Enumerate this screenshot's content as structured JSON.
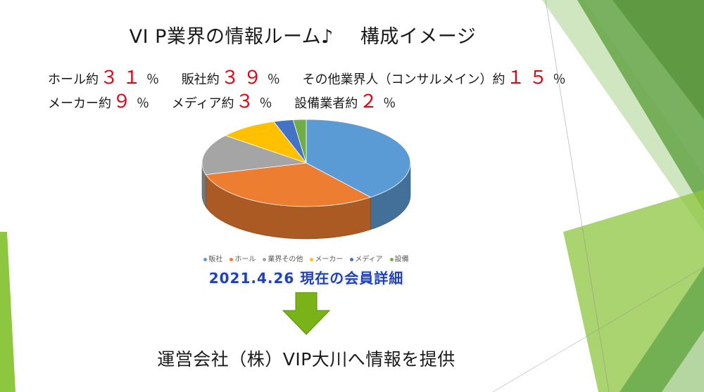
{
  "slide": {
    "title_part1": "VI P業界の情報ルーム♪",
    "title_part2": "構成イメージ",
    "stats": {
      "line1": [
        {
          "label": "ホール約",
          "num": "３１",
          "unit": "％"
        },
        {
          "label": "販社約",
          "num": "３９",
          "unit": "％"
        },
        {
          "label": "その他業界人（コンサルメイン）約",
          "num": "１５",
          "unit": "％"
        }
      ],
      "line2": [
        {
          "label": "メーカー約",
          "num": "９",
          "unit": "％"
        },
        {
          "label": "メディア約",
          "num": "３",
          "unit": "％"
        },
        {
          "label": "設備業者約",
          "num": "２",
          "unit": "％"
        }
      ]
    },
    "caption": "2021.4.26 現在の会員詳細",
    "bottom_text": "運営会社（株）VIP大川へ情報を提供"
  },
  "colors": {
    "accent_red": "#e60012",
    "caption_blue": "#1f3fbf",
    "arrow_green": "#7ab317",
    "theme_green": "#8dc63f"
  },
  "chart_data": {
    "type": "pie",
    "title": "",
    "legend_position": "bottom",
    "categories": [
      "販社",
      "ホール",
      "業界その他",
      "メーカー",
      "メディア",
      "設備"
    ],
    "values": [
      39,
      31,
      15,
      9,
      3,
      2
    ],
    "colors": [
      "#5b9bd5",
      "#ed7d31",
      "#a5a5a5",
      "#ffc000",
      "#4472c4",
      "#70ad47"
    ]
  }
}
